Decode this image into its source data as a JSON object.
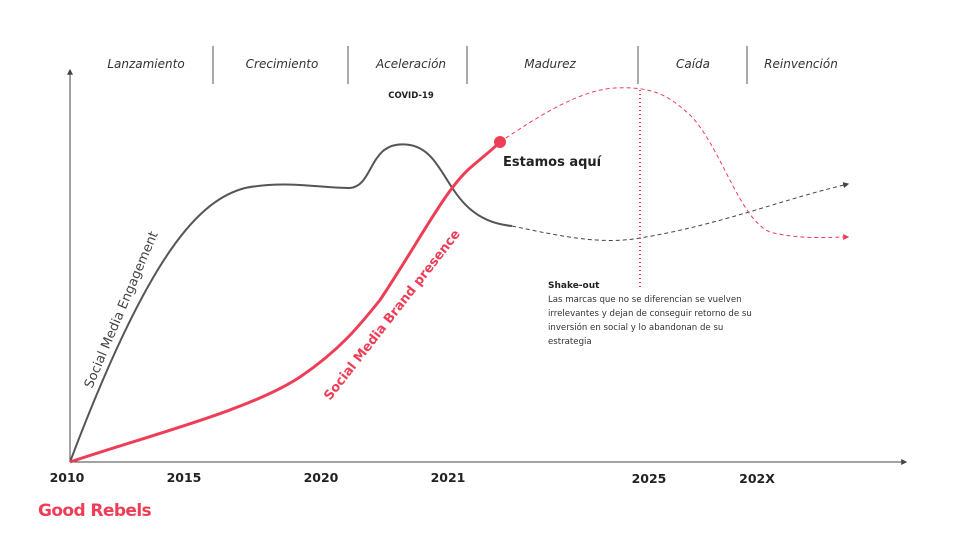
{
  "colors": {
    "accent": "#ee3e57",
    "engagement": "#555555",
    "axis": "#444444"
  },
  "brand": {
    "name": "Good Rebels"
  },
  "chart_data": {
    "type": "line",
    "phases": [
      "Lanzamiento",
      "Crecimiento",
      "Aceleración",
      "Madurez",
      "Caída",
      "Reinvención"
    ],
    "x_tick_labels": [
      "2010",
      "2015",
      "2020",
      "2021",
      "2025",
      "202X"
    ],
    "series": [
      {
        "name": "Social Media Engagement",
        "color": "#555555",
        "values": [
          0,
          87,
          80,
          73,
          40,
          57
        ],
        "projected_from": "2021"
      },
      {
        "name": "Social Media Brand presence",
        "color": "#ee3e57",
        "values": [
          0,
          12,
          28,
          60,
          110,
          73
        ],
        "projected_from": "2021"
      }
    ],
    "annotations": {
      "covid": "COVID-19",
      "here": "Estamos aquí",
      "shakeout_title": "Shake-out",
      "shakeout_lines": [
        "Las marcas que no se diferencian se vuelven",
        "irrelevantes y dejan de conseguir retorno de su",
        "inversión en social y lo abandonan de su",
        "estrategia"
      ]
    },
    "ylabel": "",
    "grid": false
  }
}
